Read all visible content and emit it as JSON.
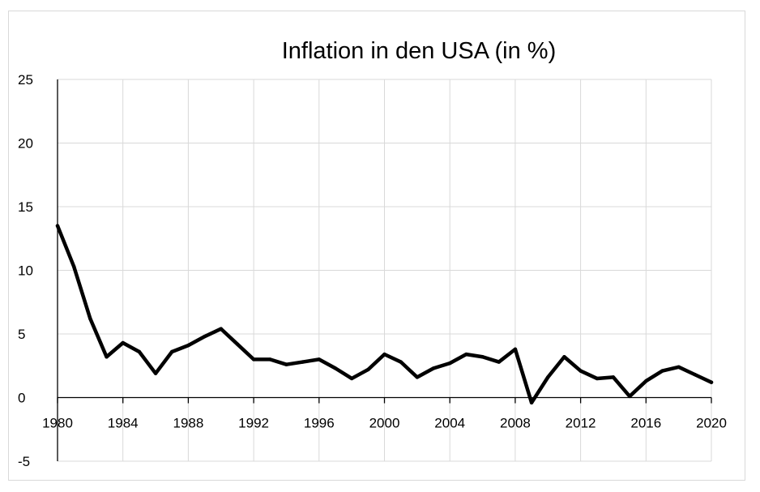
{
  "chart_data": {
    "type": "line",
    "title": "Inflation in den USA (in %)",
    "xlabel": "",
    "ylabel": "",
    "xlim": [
      1980,
      2020
    ],
    "ylim": [
      -5,
      25
    ],
    "x_ticks": [
      "1980",
      "1984",
      "1988",
      "1992",
      "1996",
      "2000",
      "2004",
      "2008",
      "2012",
      "2016",
      "2020"
    ],
    "y_ticks": [
      "25",
      "20",
      "15",
      "10",
      "5",
      "0",
      "-5"
    ],
    "grid": true,
    "legend": "none",
    "series_color": "#000000",
    "series": [
      {
        "x": [
          1980,
          1981,
          1982,
          1983,
          1984,
          1985,
          1986,
          1987,
          1988,
          1989,
          1990,
          1991,
          1992,
          1993,
          1994,
          1995,
          1996,
          1997,
          1998,
          1999,
          2000,
          2001,
          2002,
          2003,
          2004,
          2005,
          2006,
          2007,
          2008,
          2009,
          2010,
          2011,
          2012,
          2013,
          2014,
          2015,
          2016,
          2017,
          2018,
          2019,
          2020
        ],
        "y": [
          13.5,
          10.3,
          6.2,
          3.2,
          4.3,
          3.6,
          1.9,
          3.6,
          4.1,
          4.8,
          5.4,
          4.2,
          3.0,
          3.0,
          2.6,
          2.8,
          3.0,
          2.3,
          1.5,
          2.2,
          3.4,
          2.8,
          1.6,
          2.3,
          2.7,
          3.4,
          3.2,
          2.8,
          3.8,
          -0.4,
          1.6,
          3.2,
          2.1,
          1.5,
          1.6,
          0.1,
          1.3,
          2.1,
          2.4,
          1.8,
          1.2
        ]
      }
    ]
  }
}
